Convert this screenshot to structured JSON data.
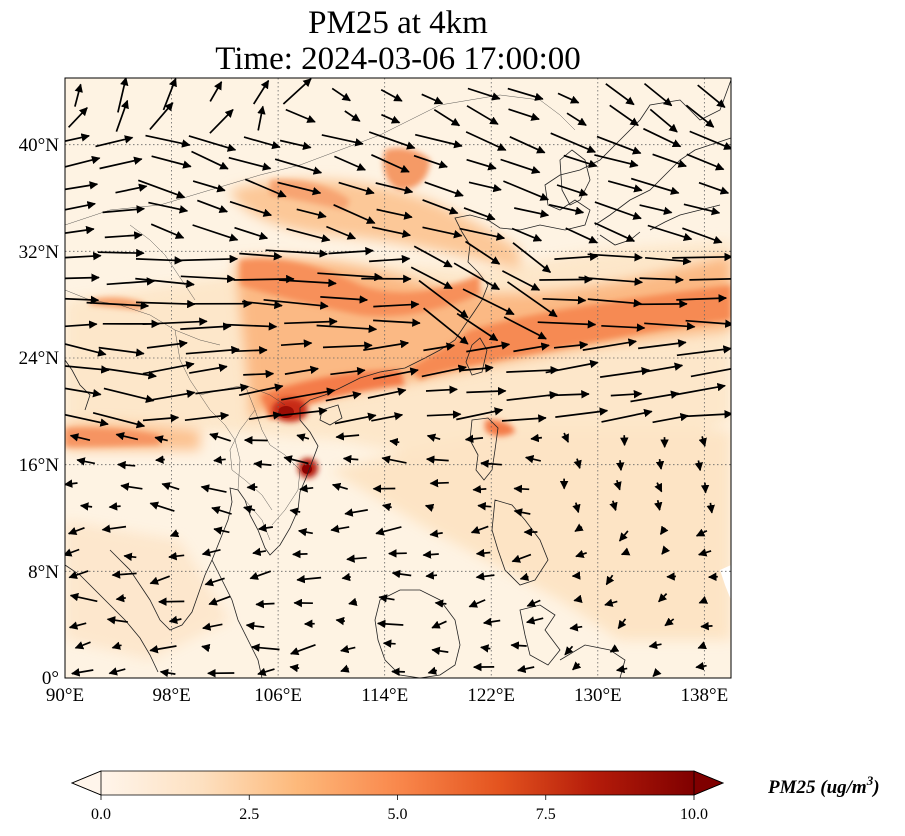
{
  "title": {
    "line1": "PM25 at 4km",
    "line2": "Time: 2024-03-06 17:00:00"
  },
  "map": {
    "lon_range": [
      90,
      140
    ],
    "lat_range": [
      0,
      45
    ],
    "lon_ticks": [
      "90°E",
      "98°E",
      "106°E",
      "114°E",
      "122°E",
      "130°E",
      "138°E"
    ],
    "lat_ticks": [
      "0°",
      "8°N",
      "16°N",
      "24°N",
      "32°N",
      "40°N"
    ],
    "gridlines": true,
    "field_colors": {
      "background": "#fef3e3",
      "light": "#fde0bd",
      "medium": "#fcb07c",
      "strong": "#f47c48",
      "dark": "#c72b16",
      "darkest": "#8b0000"
    }
  },
  "colorbar": {
    "ticks": [
      "0.0",
      "2.5",
      "5.0",
      "7.5",
      "10.0"
    ],
    "label_main": "PM25 (ug/m",
    "label_sup": "3",
    "label_end": ")",
    "colors": [
      "#fff5eb",
      "#fde0c0",
      "#fdb97b",
      "#f9884c",
      "#e4541f",
      "#b51c0a",
      "#7f0000"
    ]
  }
}
